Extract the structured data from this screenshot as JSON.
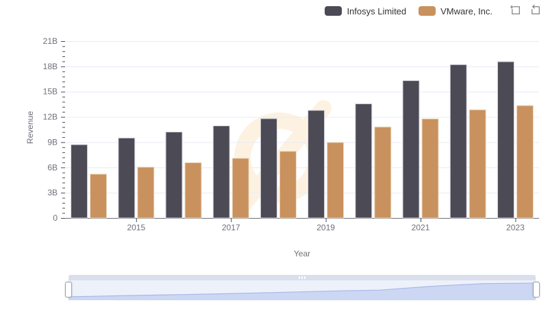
{
  "legend": {
    "items": [
      {
        "label": "Infosys Limited",
        "color": "#4b4a55"
      },
      {
        "label": "VMware, Inc.",
        "color": "#c9915e"
      }
    ]
  },
  "toolbox": {
    "icons": [
      {
        "name": "data-zoom"
      },
      {
        "name": "restore"
      }
    ]
  },
  "chart_data": {
    "type": "bar",
    "title": "",
    "xlabel": "Year",
    "ylabel": "Revenue",
    "categories": [
      "2014",
      "2015",
      "2016",
      "2017",
      "2018",
      "2019",
      "2020",
      "2021",
      "2022",
      "2023"
    ],
    "x_ticks": [
      {
        "index": 1,
        "label": "2015"
      },
      {
        "index": 3,
        "label": "2017"
      },
      {
        "index": 5,
        "label": "2019"
      },
      {
        "index": 7,
        "label": "2021"
      },
      {
        "index": 9,
        "label": "2023"
      }
    ],
    "y_ticks": [
      {
        "value": 0,
        "label": "0"
      },
      {
        "value": 3,
        "label": "3B"
      },
      {
        "value": 6,
        "label": "6B"
      },
      {
        "value": 9,
        "label": "9B"
      },
      {
        "value": 12,
        "label": "12B"
      },
      {
        "value": 15,
        "label": "15B"
      },
      {
        "value": 18,
        "label": "18B"
      },
      {
        "value": 21,
        "label": "21B"
      }
    ],
    "ylim": [
      0,
      21
    ],
    "grid": true,
    "legend_position": "top-right",
    "series": [
      {
        "name": "Infosys Limited",
        "color": "#4b4a55",
        "border_color": "#d9d9e0",
        "values": [
          8.71,
          9.5,
          10.21,
          10.94,
          11.8,
          12.78,
          13.56,
          16.31,
          18.21,
          18.56
        ]
      },
      {
        "name": "VMware, Inc.",
        "color": "#c9915e",
        "border_color": "#eedcc3",
        "values": [
          5.21,
          6.04,
          6.57,
          7.09,
          7.92,
          8.97,
          10.81,
          11.77,
          12.85,
          13.35
        ]
      }
    ]
  },
  "colors": {
    "gridline": "#e6ecf5",
    "axis_line": "#6E7079",
    "axis_label": "#6E7079",
    "tick": "#4a4a52",
    "watermark": "#fdf2e2",
    "nav_fill": "#ccd7f3",
    "nav_line": "#a9b9e8",
    "nav_bg": "#edf1fa",
    "nav_strip": "#dbdfeb",
    "nav_border": "#b3c0e8"
  }
}
